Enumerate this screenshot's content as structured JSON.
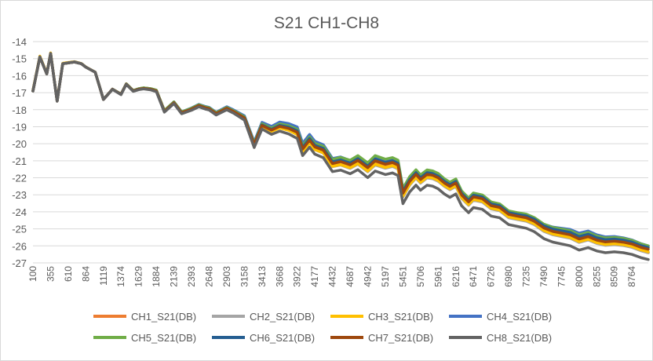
{
  "chart_data": {
    "type": "line",
    "title": "S21 CH1-CH8",
    "xlabel": "",
    "ylabel": "",
    "ylim": [
      -27,
      -14
    ],
    "yticks": [
      -14,
      -15,
      -16,
      -17,
      -18,
      -19,
      -20,
      -21,
      -22,
      -23,
      -24,
      -25,
      -26,
      -27
    ],
    "grid": "horizontal",
    "legend": "bottom",
    "xticks": [
      "100",
      "355",
      "610",
      "864",
      "1119",
      "1374",
      "1629",
      "1884",
      "2139",
      "2393",
      "2648",
      "2903",
      "3158",
      "3413",
      "3668",
      "3922",
      "4177",
      "4432",
      "4687",
      "4942",
      "5197",
      "5451",
      "5706",
      "5961",
      "6216",
      "6471",
      "6726",
      "6980",
      "7235",
      "7490",
      "7745",
      "8000",
      "8255",
      "8509",
      "8764"
    ],
    "x": [
      100,
      200,
      300,
      355,
      450,
      530,
      610,
      700,
      800,
      864,
      1000,
      1119,
      1250,
      1374,
      1450,
      1550,
      1629,
      1700,
      1800,
      1884,
      2000,
      2139,
      2250,
      2393,
      2500,
      2600,
      2648,
      2750,
      2903,
      3000,
      3158,
      3300,
      3413,
      3550,
      3668,
      3800,
      3922,
      4000,
      4100,
      4177,
      4300,
      4432,
      4550,
      4687,
      4800,
      4942,
      5050,
      5197,
      5300,
      5380,
      5451,
      5550,
      5640,
      5706,
      5800,
      5880,
      5961,
      6050,
      6130,
      6216,
      6300,
      6400,
      6471,
      6600,
      6726,
      6850,
      6980,
      7100,
      7235,
      7350,
      7490,
      7620,
      7745,
      7870,
      8000,
      8130,
      8255,
      8380,
      8509,
      8640,
      8764,
      8900,
      9000
    ],
    "base": [
      -16.9,
      -14.9,
      -15.9,
      -14.7,
      -17.5,
      -15.3,
      -15.25,
      -15.2,
      -15.3,
      -15.5,
      -15.8,
      -17.4,
      -16.8,
      -17.1,
      -16.5,
      -16.9,
      -16.8,
      -16.75,
      -16.8,
      -16.9,
      -18.1,
      -17.6,
      -18.2,
      -18.0,
      -17.8,
      -17.95,
      -18.0,
      -18.3,
      -18.0,
      -18.2,
      -18.6,
      -20.2,
      -19.1,
      -19.4,
      -19.2,
      -19.35,
      -19.6,
      -20.6,
      -20.1,
      -20.5,
      -20.7,
      -21.5,
      -21.4,
      -21.6,
      -21.35,
      -21.8,
      -21.4,
      -21.6,
      -21.5,
      -21.65,
      -23.3,
      -22.6,
      -22.2,
      -22.5,
      -22.2,
      -22.25,
      -22.4,
      -22.7,
      -22.9,
      -22.7,
      -23.4,
      -23.8,
      -23.5,
      -23.6,
      -24.0,
      -24.1,
      -24.5,
      -24.6,
      -24.7,
      -24.9,
      -25.3,
      -25.5,
      -25.6,
      -25.7,
      -25.95,
      -25.8,
      -26.0,
      -26.1,
      -26.05,
      -26.1,
      -26.2,
      -26.4,
      -26.5
    ],
    "series": [
      {
        "name": "CH1_S21(DB)",
        "color": "#ed7d31",
        "offset": [
          0.0,
          0.0,
          0.05,
          0.15,
          0.25,
          0.25,
          0.3,
          0.2,
          0.2,
          0.1
        ]
      },
      {
        "name": "CH2_S21(DB)",
        "color": "#a5a5a5",
        "offset": [
          0.0,
          0.0,
          0.05,
          0.1,
          0.15,
          0.15,
          0.2,
          0.15,
          0.15,
          0.1
        ]
      },
      {
        "name": "CH3_S21(DB)",
        "color": "#ffc000",
        "offset": [
          0.05,
          0.0,
          0.05,
          0.1,
          0.15,
          0.2,
          0.25,
          0.2,
          0.2,
          0.15
        ]
      },
      {
        "name": "CH4_S21(DB)",
        "color": "#4472c4",
        "offset": [
          0.0,
          0.0,
          0.05,
          0.2,
          0.65,
          0.6,
          0.55,
          0.45,
          0.7,
          0.5
        ]
      },
      {
        "name": "CH5_S21(DB)",
        "color": "#70ad47",
        "offset": [
          0.0,
          0.0,
          0.05,
          0.15,
          0.5,
          0.7,
          0.65,
          0.55,
          0.6,
          0.5
        ]
      },
      {
        "name": "CH6_S21(DB)",
        "color": "#255e91",
        "offset": [
          0.0,
          0.0,
          0.0,
          0.1,
          0.4,
          0.5,
          0.5,
          0.45,
          0.5,
          0.4
        ]
      },
      {
        "name": "CH7_S21(DB)",
        "color": "#9e480e",
        "offset": [
          0.0,
          0.0,
          0.0,
          0.1,
          0.3,
          0.4,
          0.4,
          0.35,
          0.35,
          0.3
        ]
      },
      {
        "name": "CH8_S21(DB)",
        "color": "#636363",
        "offset": [
          0.0,
          0.0,
          -0.05,
          0.0,
          -0.1,
          -0.2,
          -0.25,
          -0.25,
          -0.3,
          -0.3
        ]
      }
    ]
  }
}
